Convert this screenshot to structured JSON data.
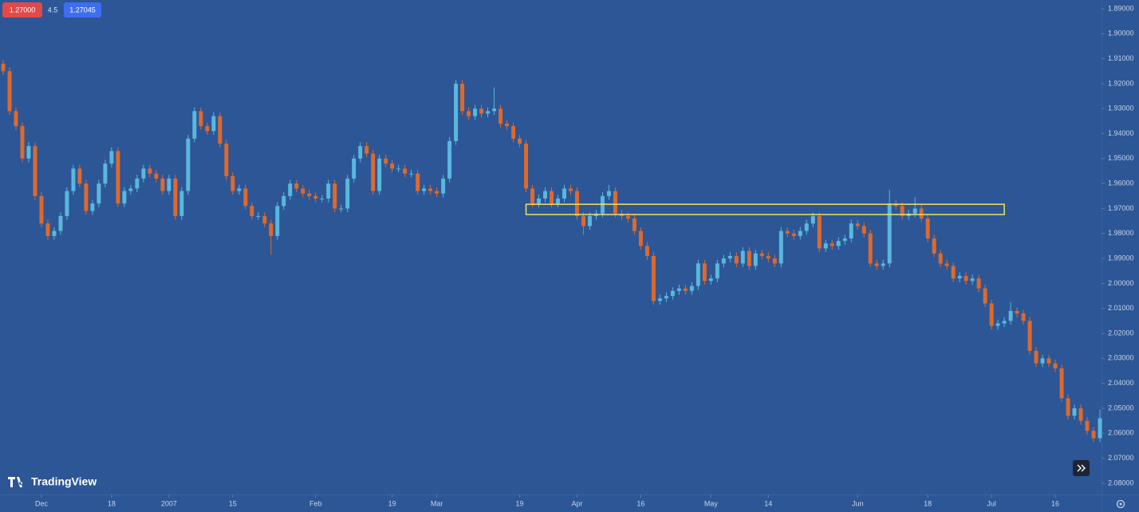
{
  "widgets": {
    "sell": "1.27000",
    "spread": "4.5",
    "buy": "1.27045"
  },
  "branding": "TradingView",
  "chart_data": {
    "type": "candlestick",
    "inverted": true,
    "up_color": "#e0692a",
    "down_color": "#5ab8dc",
    "ylim": [
      1.8865,
      2.0845
    ],
    "yticks": [
      {
        "value": 1.89,
        "label": "1.89000"
      },
      {
        "value": 1.9,
        "label": "1.90000"
      },
      {
        "value": 1.91,
        "label": "1.91000"
      },
      {
        "value": 1.92,
        "label": "1.92000"
      },
      {
        "value": 1.93,
        "label": "1.93000"
      },
      {
        "value": 1.94,
        "label": "1.94000"
      },
      {
        "value": 1.95,
        "label": "1.95000"
      },
      {
        "value": 1.96,
        "label": "1.96000"
      },
      {
        "value": 1.97,
        "label": "1.97000"
      },
      {
        "value": 1.98,
        "label": "1.98000"
      },
      {
        "value": 1.99,
        "label": "1.99000"
      },
      {
        "value": 2.0,
        "label": "2.00000"
      },
      {
        "value": 2.01,
        "label": "2.01000"
      },
      {
        "value": 2.02,
        "label": "2.02000"
      },
      {
        "value": 2.03,
        "label": "2.03000"
      },
      {
        "value": 2.04,
        "label": "2.04000"
      },
      {
        "value": 2.05,
        "label": "2.05000"
      },
      {
        "value": 2.06,
        "label": "2.06000"
      },
      {
        "value": 2.07,
        "label": "2.07000"
      },
      {
        "value": 2.08,
        "label": "2.08000"
      }
    ],
    "xticks": [
      {
        "value": 6,
        "label": "Dec"
      },
      {
        "value": 17,
        "label": "18"
      },
      {
        "value": 26,
        "label": "2007"
      },
      {
        "value": 36,
        "label": "15"
      },
      {
        "value": 49,
        "label": "Feb"
      },
      {
        "value": 61,
        "label": "19"
      },
      {
        "value": 68,
        "label": "Mar"
      },
      {
        "value": 81,
        "label": "19"
      },
      {
        "value": 90,
        "label": "Apr"
      },
      {
        "value": 100,
        "label": "16"
      },
      {
        "value": 111,
        "label": "May"
      },
      {
        "value": 120,
        "label": "14"
      },
      {
        "value": 134,
        "label": "Jun"
      },
      {
        "value": 145,
        "label": "18"
      },
      {
        "value": 155,
        "label": "Jul"
      },
      {
        "value": 165,
        "label": "16"
      }
    ],
    "zone": {
      "x": [
        82,
        157
      ],
      "y": [
        1.9683,
        1.9724
      ],
      "color": "#f2e35c"
    },
    "candles": [
      [
        1.912,
        1.9165,
        1.9105,
        1.915
      ],
      [
        1.915,
        1.9325,
        1.9135,
        1.931
      ],
      [
        1.931,
        1.9385,
        1.9295,
        1.937
      ],
      [
        1.937,
        1.9515,
        1.9355,
        1.95
      ],
      [
        1.95,
        1.9515,
        1.9435,
        1.945
      ],
      [
        1.945,
        1.9665,
        1.9435,
        1.965
      ],
      [
        1.965,
        1.9775,
        1.9635,
        1.976
      ],
      [
        1.976,
        1.9825,
        1.9745,
        1.981
      ],
      [
        1.981,
        1.9825,
        1.9775,
        1.979
      ],
      [
        1.979,
        1.9805,
        1.9715,
        1.973
      ],
      [
        1.973,
        1.9745,
        1.9615,
        1.963
      ],
      [
        1.963,
        1.9645,
        1.9525,
        1.954
      ],
      [
        1.954,
        1.9615,
        1.9525,
        1.96
      ],
      [
        1.96,
        1.9725,
        1.9585,
        1.971
      ],
      [
        1.971,
        1.9725,
        1.9665,
        1.968
      ],
      [
        1.968,
        1.9695,
        1.9585,
        1.96
      ],
      [
        1.96,
        1.9615,
        1.9505,
        1.952
      ],
      [
        1.952,
        1.9535,
        1.9455,
        1.947
      ],
      [
        1.947,
        1.9695,
        1.9455,
        1.968
      ],
      [
        1.968,
        1.9695,
        1.9615,
        1.963
      ],
      [
        1.963,
        1.9645,
        1.9605,
        1.962
      ],
      [
        1.962,
        1.9635,
        1.9565,
        1.958
      ],
      [
        1.958,
        1.9595,
        1.9525,
        1.954
      ],
      [
        1.954,
        1.9575,
        1.9525,
        1.956
      ],
      [
        1.956,
        1.9595,
        1.9545,
        1.958
      ],
      [
        1.958,
        1.9645,
        1.9565,
        1.963
      ],
      [
        1.963,
        1.9645,
        1.9565,
        1.958
      ],
      [
        1.958,
        1.9745,
        1.9565,
        1.973
      ],
      [
        1.973,
        1.9745,
        1.9615,
        1.963
      ],
      [
        1.963,
        1.9645,
        1.9405,
        1.942
      ],
      [
        1.942,
        1.9435,
        1.9295,
        1.931
      ],
      [
        1.931,
        1.9385,
        1.9295,
        1.937
      ],
      [
        1.937,
        1.9405,
        1.9355,
        1.939
      ],
      [
        1.939,
        1.9405,
        1.9315,
        1.933
      ],
      [
        1.933,
        1.9455,
        1.9315,
        1.944
      ],
      [
        1.944,
        1.9585,
        1.9425,
        1.957
      ],
      [
        1.957,
        1.9645,
        1.9555,
        1.963
      ],
      [
        1.963,
        1.9645,
        1.9605,
        1.962
      ],
      [
        1.962,
        1.9705,
        1.9605,
        1.969
      ],
      [
        1.969,
        1.9745,
        1.9675,
        1.973
      ],
      [
        1.973,
        1.9745,
        1.9715,
        1.973
      ],
      [
        1.973,
        1.9775,
        1.9715,
        1.976
      ],
      [
        1.976,
        1.9885,
        1.9745,
        1.981
      ],
      [
        1.981,
        1.9825,
        1.9675,
        1.969
      ],
      [
        1.969,
        1.9705,
        1.9635,
        1.965
      ],
      [
        1.965,
        1.9665,
        1.9585,
        1.96
      ],
      [
        1.96,
        1.9635,
        1.9585,
        1.962
      ],
      [
        1.962,
        1.9655,
        1.9605,
        1.964
      ],
      [
        1.964,
        1.9665,
        1.9625,
        1.965
      ],
      [
        1.965,
        1.9675,
        1.9635,
        1.966
      ],
      [
        1.966,
        1.9675,
        1.9645,
        1.966
      ],
      [
        1.966,
        1.9675,
        1.9585,
        1.96
      ],
      [
        1.96,
        1.9715,
        1.9585,
        1.97
      ],
      [
        1.97,
        1.9715,
        1.9685,
        1.97
      ],
      [
        1.97,
        1.9715,
        1.9565,
        1.958
      ],
      [
        1.958,
        1.9595,
        1.9485,
        1.95
      ],
      [
        1.95,
        1.9515,
        1.9435,
        1.945
      ],
      [
        1.945,
        1.9495,
        1.9435,
        1.948
      ],
      [
        1.948,
        1.9645,
        1.9465,
        1.963
      ],
      [
        1.963,
        1.9645,
        1.9485,
        1.95
      ],
      [
        1.95,
        1.9535,
        1.9485,
        1.952
      ],
      [
        1.952,
        1.9555,
        1.9505,
        1.954
      ],
      [
        1.954,
        1.9555,
        1.9525,
        1.954
      ],
      [
        1.954,
        1.9575,
        1.9525,
        1.956
      ],
      [
        1.956,
        1.9575,
        1.9545,
        1.956
      ],
      [
        1.956,
        1.9645,
        1.9545,
        1.963
      ],
      [
        1.963,
        1.9645,
        1.9605,
        1.962
      ],
      [
        1.962,
        1.9645,
        1.9605,
        1.963
      ],
      [
        1.963,
        1.9655,
        1.9615,
        1.964
      ],
      [
        1.964,
        1.9655,
        1.9565,
        1.958
      ],
      [
        1.958,
        1.9595,
        1.9415,
        1.943
      ],
      [
        1.943,
        1.9445,
        1.9185,
        1.92
      ],
      [
        1.92,
        1.9325,
        1.9185,
        1.931
      ],
      [
        1.931,
        1.9345,
        1.9295,
        1.933
      ],
      [
        1.933,
        1.9345,
        1.9285,
        1.93
      ],
      [
        1.93,
        1.9335,
        1.9285,
        1.932
      ],
      [
        1.932,
        1.9335,
        1.9295,
        1.931
      ],
      [
        1.931,
        1.9325,
        1.9215,
        1.93
      ],
      [
        1.93,
        1.9375,
        1.9285,
        1.936
      ],
      [
        1.936,
        1.9385,
        1.9345,
        1.937
      ],
      [
        1.937,
        1.9435,
        1.9355,
        1.942
      ],
      [
        1.942,
        1.9455,
        1.9405,
        1.944
      ],
      [
        1.944,
        1.9635,
        1.9425,
        1.962
      ],
      [
        1.962,
        1.9695,
        1.9605,
        1.968
      ],
      [
        1.968,
        1.9695,
        1.9645,
        1.966
      ],
      [
        1.966,
        1.9675,
        1.9615,
        1.963
      ],
      [
        1.963,
        1.9695,
        1.9615,
        1.968
      ],
      [
        1.968,
        1.9695,
        1.9645,
        1.966
      ],
      [
        1.966,
        1.9675,
        1.9605,
        1.962
      ],
      [
        1.962,
        1.9645,
        1.9605,
        1.963
      ],
      [
        1.963,
        1.9745,
        1.9615,
        1.973
      ],
      [
        1.973,
        1.9805,
        1.9715,
        1.977
      ],
      [
        1.977,
        1.9785,
        1.9715,
        1.973
      ],
      [
        1.973,
        1.9745,
        1.9705,
        1.972
      ],
      [
        1.972,
        1.9735,
        1.9635,
        1.965
      ],
      [
        1.965,
        1.9665,
        1.9605,
        1.963
      ],
      [
        1.963,
        1.9735,
        1.9615,
        1.972
      ],
      [
        1.972,
        1.9745,
        1.9705,
        1.973
      ],
      [
        1.973,
        1.9755,
        1.9715,
        1.974
      ],
      [
        1.974,
        1.9805,
        1.9725,
        1.979
      ],
      [
        1.979,
        1.9865,
        1.9775,
        1.985
      ],
      [
        1.985,
        1.9905,
        1.9835,
        1.989
      ],
      [
        1.989,
        2.0085,
        1.9875,
        2.007
      ],
      [
        2.007,
        2.0085,
        2.0045,
        2.006
      ],
      [
        2.006,
        2.0075,
        2.0035,
        2.005
      ],
      [
        2.005,
        2.0065,
        2.0015,
        2.003
      ],
      [
        2.003,
        2.0045,
        2.0005,
        2.002
      ],
      [
        2.002,
        2.0045,
        2.0005,
        2.003
      ],
      [
        2.003,
        2.0045,
        1.9995,
        2.001
      ],
      [
        2.001,
        2.0025,
        1.9905,
        1.992
      ],
      [
        1.992,
        2.0005,
        1.9905,
        1.999
      ],
      [
        1.999,
        2.0005,
        1.9965,
        1.998
      ],
      [
        1.998,
        1.9995,
        1.9905,
        1.992
      ],
      [
        1.992,
        1.9935,
        1.9885,
        1.99
      ],
      [
        1.99,
        1.9915,
        1.9875,
        1.989
      ],
      [
        1.989,
        1.9935,
        1.9875,
        1.992
      ],
      [
        1.992,
        1.9935,
        1.9855,
        1.987
      ],
      [
        1.987,
        1.9945,
        1.9855,
        1.993
      ],
      [
        1.993,
        1.9945,
        1.9865,
        1.988
      ],
      [
        1.988,
        1.9905,
        1.9865,
        1.989
      ],
      [
        1.989,
        1.9915,
        1.9875,
        1.99
      ],
      [
        1.99,
        1.9935,
        1.9885,
        1.992
      ],
      [
        1.992,
        1.9935,
        1.9775,
        1.979
      ],
      [
        1.979,
        1.9815,
        1.9775,
        1.98
      ],
      [
        1.98,
        1.9825,
        1.9785,
        1.981
      ],
      [
        1.981,
        1.9825,
        1.9775,
        1.979
      ],
      [
        1.979,
        1.9805,
        1.9745,
        1.976
      ],
      [
        1.976,
        1.9775,
        1.9715,
        1.973
      ],
      [
        1.973,
        1.9875,
        1.9715,
        1.986
      ],
      [
        1.986,
        1.9875,
        1.9825,
        1.984
      ],
      [
        1.984,
        1.9865,
        1.9825,
        1.985
      ],
      [
        1.985,
        1.9865,
        1.9815,
        1.983
      ],
      [
        1.983,
        1.9845,
        1.9805,
        1.982
      ],
      [
        1.982,
        1.9835,
        1.9745,
        1.976
      ],
      [
        1.976,
        1.9785,
        1.9745,
        1.977
      ],
      [
        1.977,
        1.9815,
        1.9755,
        1.98
      ],
      [
        1.98,
        1.9935,
        1.9785,
        1.992
      ],
      [
        1.992,
        1.9945,
        1.9905,
        1.993
      ],
      [
        1.993,
        1.9945,
        1.9905,
        1.992
      ],
      [
        1.992,
        1.9935,
        1.9625,
        1.968
      ],
      [
        1.968,
        1.9705,
        1.9665,
        1.969
      ],
      [
        1.969,
        1.9745,
        1.9675,
        1.973
      ],
      [
        1.973,
        1.9745,
        1.9705,
        1.972
      ],
      [
        1.972,
        1.9735,
        1.9655,
        1.97
      ],
      [
        1.97,
        1.9755,
        1.9685,
        1.974
      ],
      [
        1.974,
        1.9835,
        1.9725,
        1.982
      ],
      [
        1.982,
        1.9895,
        1.9805,
        1.988
      ],
      [
        1.988,
        1.9935,
        1.9865,
        1.992
      ],
      [
        1.992,
        1.9945,
        1.9905,
        1.993
      ],
      [
        1.993,
        1.9995,
        1.9915,
        1.998
      ],
      [
        1.998,
        1.9995,
        1.9955,
        1.997
      ],
      [
        1.997,
        2.0005,
        1.9955,
        1.999
      ],
      [
        1.999,
        2.0005,
        1.9965,
        1.998
      ],
      [
        1.998,
        2.0035,
        1.9965,
        2.002
      ],
      [
        2.002,
        2.0095,
        2.0005,
        2.008
      ],
      [
        2.008,
        2.0185,
        2.0065,
        2.017
      ],
      [
        2.017,
        2.0185,
        2.0145,
        2.016
      ],
      [
        2.016,
        2.0175,
        2.0135,
        2.015
      ],
      [
        2.015,
        2.0165,
        2.0075,
        2.011
      ],
      [
        2.011,
        2.0135,
        2.0095,
        2.012
      ],
      [
        2.012,
        2.0165,
        2.0105,
        2.015
      ],
      [
        2.015,
        2.0285,
        2.0135,
        2.027
      ],
      [
        2.027,
        2.0335,
        2.0255,
        2.032
      ],
      [
        2.032,
        2.0335,
        2.0285,
        2.03
      ],
      [
        2.03,
        2.0335,
        2.0285,
        2.032
      ],
      [
        2.032,
        2.0355,
        2.0305,
        2.034
      ],
      [
        2.034,
        2.0475,
        2.0325,
        2.046
      ],
      [
        2.046,
        2.0545,
        2.0445,
        2.053
      ],
      [
        2.053,
        2.0545,
        2.0485,
        2.05
      ],
      [
        2.05,
        2.0565,
        2.0485,
        2.055
      ],
      [
        2.055,
        2.0605,
        2.0535,
        2.059
      ],
      [
        2.059,
        2.0635,
        2.0575,
        2.062
      ],
      [
        2.062,
        2.0635,
        2.0505,
        2.054
      ]
    ]
  }
}
